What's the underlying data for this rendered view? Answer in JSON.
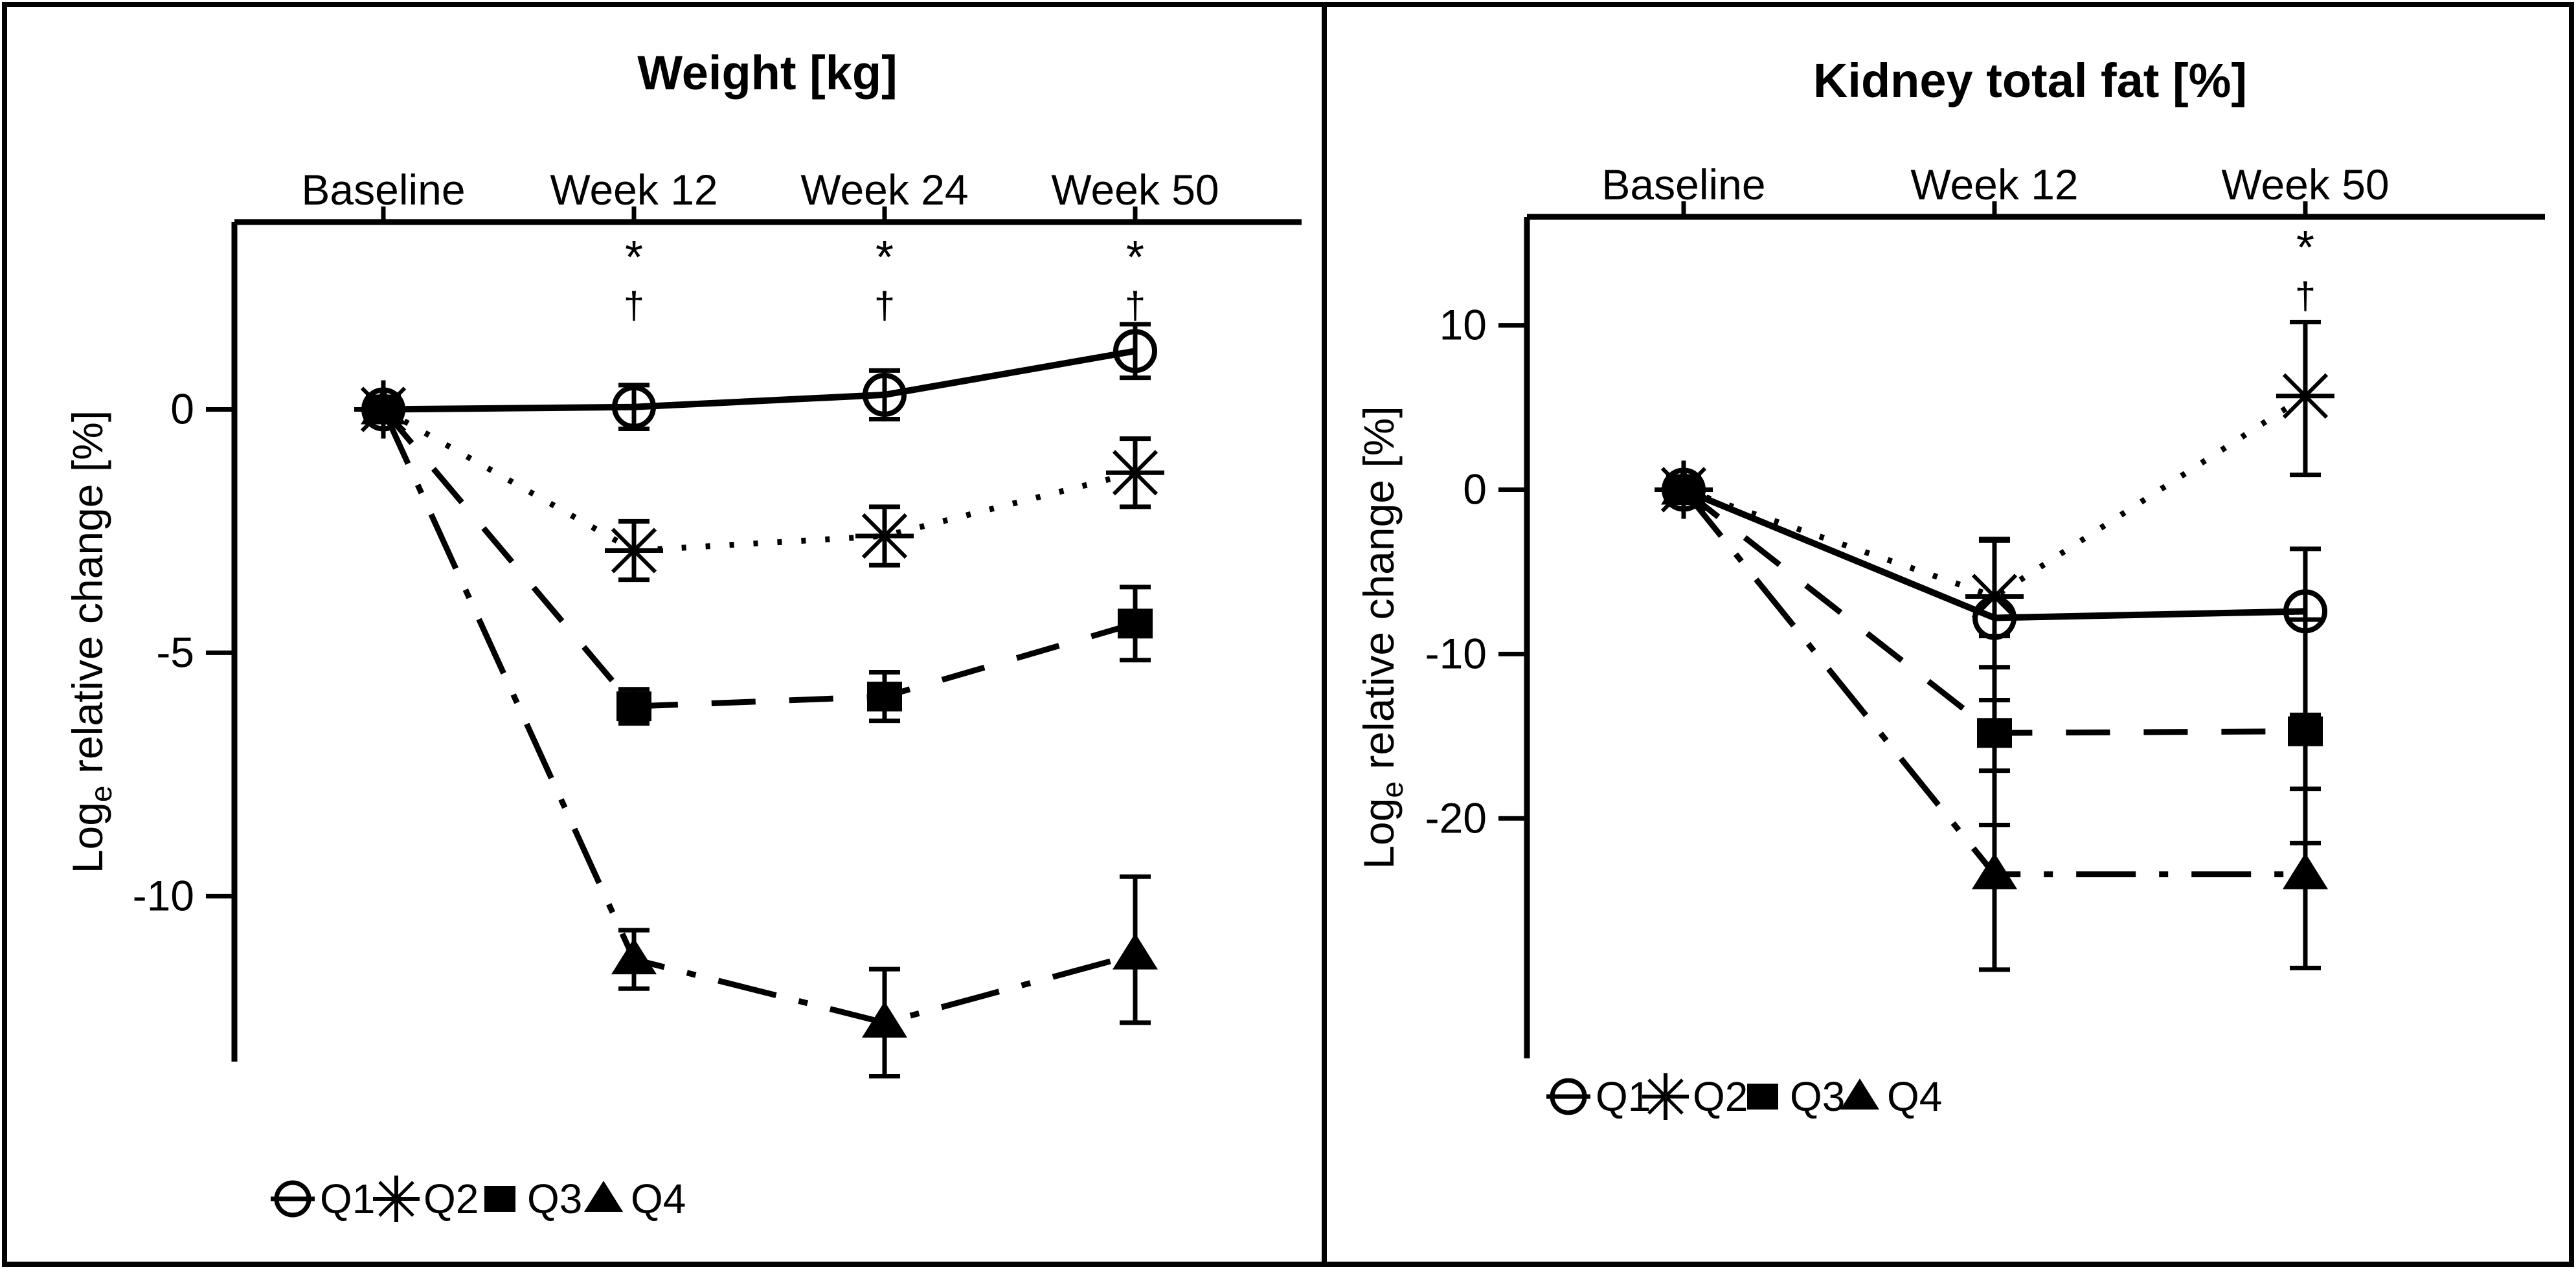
{
  "figure": {
    "background": "#ffffff",
    "line_color": "#000000",
    "border_color": "#000000"
  },
  "ylabel": {
    "prefix": "Log",
    "subscript": "e",
    "suffix": " relative change [%]"
  },
  "legend_labels": [
    "Q1",
    "Q2",
    "Q3",
    "Q4"
  ],
  "chart_data": [
    {
      "type": "line",
      "panel": "weight",
      "title": "Weight [kg]",
      "categories": [
        "Baseline",
        "Week 12",
        "Week 24",
        "Week 50"
      ],
      "yticks": [
        0,
        -5,
        -10
      ],
      "ylim": [
        -13.4,
        3.85
      ],
      "grid": false,
      "legend_position": "bottom-left",
      "series": [
        {
          "name": "Q1",
          "marker": "circle",
          "line": "solid",
          "values": [
            0,
            0.05,
            0.3,
            1.2
          ],
          "err_hi": [
            0.2,
            0.45,
            0.5,
            0.55
          ],
          "err_lo": [
            0.2,
            0.45,
            0.5,
            0.55
          ]
        },
        {
          "name": "Q2",
          "marker": "asterisk",
          "line": "dotted",
          "values": [
            0,
            -2.9,
            -2.6,
            -1.3
          ],
          "err_hi": [
            0.25,
            0.6,
            0.6,
            0.7
          ],
          "err_lo": [
            0.25,
            0.6,
            0.6,
            0.7
          ]
        },
        {
          "name": "Q3",
          "marker": "square",
          "line": "dashed",
          "values": [
            0,
            -6.1,
            -5.9,
            -4.4
          ],
          "err_hi": [
            0.2,
            0.35,
            0.5,
            0.75
          ],
          "err_lo": [
            0.2,
            0.35,
            0.5,
            0.75
          ]
        },
        {
          "name": "Q4",
          "marker": "triangle",
          "line": "dashdot",
          "values": [
            0,
            -11.3,
            -12.6,
            -11.2
          ],
          "err_hi": [
            0.25,
            0.6,
            1.1,
            1.6
          ],
          "err_lo": [
            0.25,
            0.6,
            1.1,
            1.4
          ]
        }
      ],
      "annotations": [
        {
          "category": "Week 12",
          "symbols": [
            "*",
            "†"
          ]
        },
        {
          "category": "Week 24",
          "symbols": [
            "*",
            "†"
          ]
        },
        {
          "category": "Week 50",
          "symbols": [
            "*",
            "†"
          ]
        }
      ]
    },
    {
      "type": "line",
      "panel": "kidney",
      "title": "Kidney total fat [%]",
      "categories": [
        "Baseline",
        "Week 12",
        "Week 50"
      ],
      "yticks": [
        10,
        0,
        -10,
        -20
      ],
      "ylim": [
        -34.6,
        16.6
      ],
      "grid": false,
      "legend_position": "bottom-left",
      "series": [
        {
          "name": "Q1",
          "marker": "circle",
          "line": "solid",
          "values": [
            0,
            -7.8,
            -7.4
          ],
          "err_hi": [
            0.7,
            4.7,
            3.8
          ],
          "err_lo": [
            0.7,
            5.0,
            6.3
          ]
        },
        {
          "name": "Q2",
          "marker": "asterisk",
          "line": "dotted",
          "values": [
            0,
            -6.5,
            5.7
          ],
          "err_hi": [
            0.7,
            3.5,
            4.5
          ],
          "err_lo": [
            0.7,
            4.3,
            4.8
          ]
        },
        {
          "name": "Q3",
          "marker": "square",
          "line": "dashed",
          "values": [
            0,
            -14.8,
            -14.7
          ],
          "err_hi": [
            0.7,
            5.9,
            6.8
          ],
          "err_lo": [
            0.7,
            5.6,
            6.8
          ]
        },
        {
          "name": "Q4",
          "marker": "triangle",
          "line": "dashdot",
          "values": [
            0,
            -23.4,
            -23.4
          ],
          "err_hi": [
            0.8,
            6.3,
            5.2
          ],
          "err_lo": [
            0.8,
            5.8,
            5.7
          ]
        }
      ],
      "annotations": [
        {
          "category": "Week 50",
          "symbols": [
            "*",
            "†"
          ]
        }
      ]
    }
  ]
}
